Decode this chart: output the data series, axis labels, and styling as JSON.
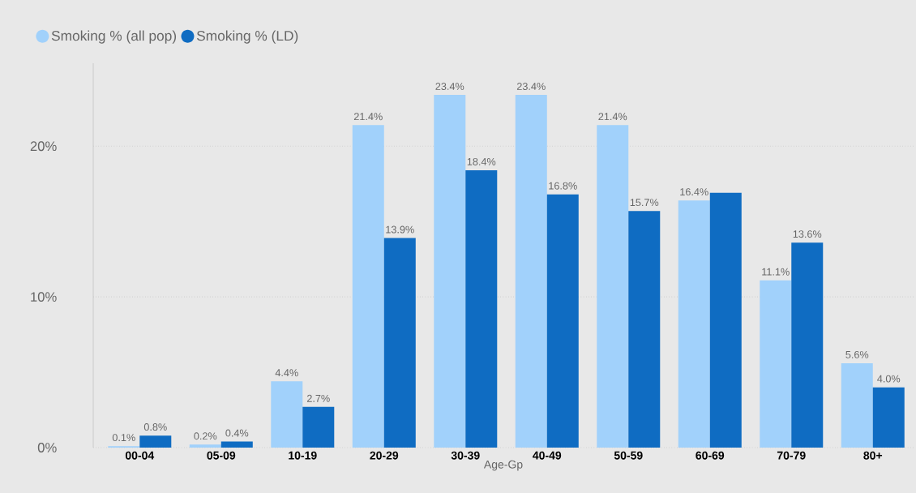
{
  "chart_data": {
    "type": "bar",
    "xlabel": "Age-Gp",
    "categories": [
      "00-04",
      "05-09",
      "10-19",
      "20-29",
      "30-39",
      "40-49",
      "50-59",
      "60-69",
      "70-79",
      "80+"
    ],
    "series": [
      {
        "name": "Smoking % (all pop)",
        "color": "#a1d1fb",
        "values": [
          0.1,
          0.2,
          4.4,
          21.4,
          23.4,
          23.4,
          21.4,
          16.4,
          11.1,
          5.6
        ],
        "value_labels": [
          "0.1%",
          "0.2%",
          "4.4%",
          "21.4%",
          "23.4%",
          "23.4%",
          "21.4%",
          "16.4%",
          "11.1%",
          "5.6%"
        ]
      },
      {
        "name": "Smoking % (LD)",
        "color": "#0f6cc2",
        "values": [
          0.8,
          0.4,
          2.7,
          13.9,
          18.4,
          16.8,
          15.7,
          16.9,
          13.6,
          4.0
        ],
        "value_labels": [
          "0.8%",
          "0.4%",
          "2.7%",
          "13.9%",
          "18.4%",
          "16.8%",
          "15.7%",
          null,
          "13.6%",
          "4.0%"
        ]
      }
    ],
    "ylim": [
      0,
      25.5
    ],
    "yticks": [
      {
        "value": 0,
        "label": "0%"
      },
      {
        "value": 10,
        "label": "10%"
      },
      {
        "value": 20,
        "label": "20%"
      }
    ],
    "grid": "y",
    "legend": "top left"
  }
}
